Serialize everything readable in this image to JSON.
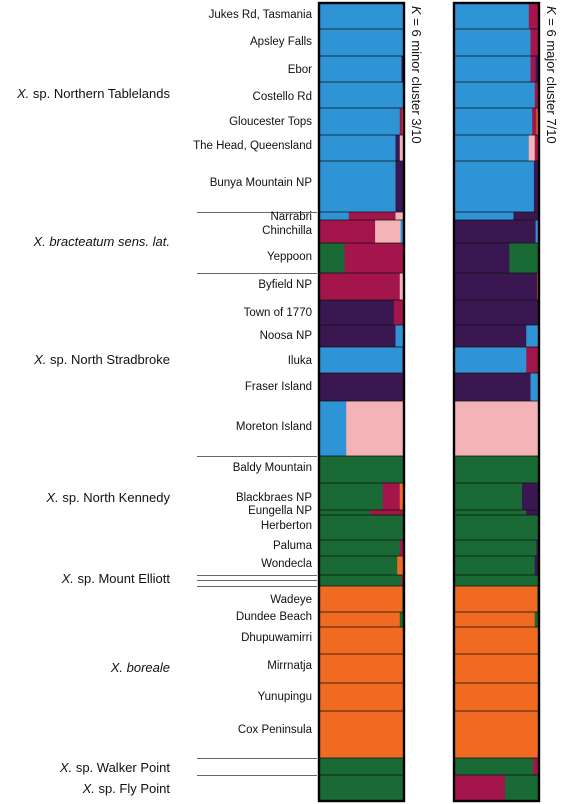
{
  "chart_data": {
    "type": "bar",
    "layout": "stacked-vertical-structure-plot",
    "colors": {
      "blue": "#2f94d6",
      "crimson": "#a4154b",
      "pink": "#f4b3b6",
      "darkpurple": "#3b1752",
      "green": "#1a6a36",
      "orange": "#f06a22"
    },
    "panels": [
      {
        "label_k": "K",
        "label_rest": " = 6 minor cluster 3/10"
      },
      {
        "label_k": "K",
        "label_rest": " = 6 major cluster 7/10"
      }
    ],
    "species": [
      {
        "prefix": "X.",
        "name": " sp. Northern Tablelands",
        "italic_all": false
      },
      {
        "prefix": "X.",
        "name": " bracteatum sens. lat.",
        "italic_all": true
      },
      {
        "prefix": "X.",
        "name": " sp. North Stradbroke",
        "italic_all": false
      },
      {
        "prefix": "X.",
        "name": " sp. North Kennedy",
        "italic_all": false
      },
      {
        "prefix": "X.",
        "name": " sp. Mount Elliott",
        "italic_all": false
      },
      {
        "prefix": "X.",
        "name": " boreale",
        "italic_all": true
      },
      {
        "prefix": "X.",
        "name": " sp. Walker Point",
        "italic_all": false
      },
      {
        "prefix": "X.",
        "name": " sp. Fly Point",
        "italic_all": false
      }
    ],
    "populations": [
      {
        "name": "Jukes Rd, Tasmania",
        "minor": {
          "blue": 1.0
        },
        "major": {
          "blue": 0.88,
          "crimson": 0.12
        }
      },
      {
        "name": "Apsley Falls",
        "minor": {
          "blue": 1.0
        },
        "major": {
          "blue": 0.9,
          "crimson": 0.1
        }
      },
      {
        "name": "Ebor",
        "minor": {
          "blue": 0.97,
          "darkpurple": 0.03
        },
        "major": {
          "blue": 0.9,
          "crimson": 0.06,
          "darkpurple": 0.04
        }
      },
      {
        "name": "Costello Rd",
        "minor": {
          "blue": 1.0
        },
        "major": {
          "blue": 0.95,
          "crimson": 0.05
        }
      },
      {
        "name": "Gloucester Tops",
        "minor": {
          "blue": 0.95,
          "crimson": 0.03,
          "orange": 0.02
        },
        "major": {
          "blue": 0.92,
          "crimson": 0.05,
          "orange": 0.03
        }
      },
      {
        "name": "The Head, Queensland",
        "minor": {
          "blue": 0.9,
          "darkpurple": 0.05,
          "pink": 0.05
        },
        "major": {
          "blue": 0.88,
          "pink": 0.07,
          "crimson": 0.05
        }
      },
      {
        "name": "Bunya Mountain NP",
        "minor": {
          "blue": 0.9,
          "darkpurple": 0.1
        },
        "major": {
          "blue": 0.94,
          "darkpurple": 0.06
        }
      },
      {
        "name": "Narrabri",
        "minor": {
          "blue": 0.35,
          "crimson": 0.55,
          "pink": 0.1
        },
        "major": {
          "blue": 0.7,
          "darkpurple": 0.3
        }
      },
      {
        "name": "Chinchilla",
        "minor": {
          "crimson": 0.66,
          "pink": 0.3,
          "blue": 0.04
        },
        "major": {
          "darkpurple": 0.96,
          "blue": 0.04
        }
      },
      {
        "name": "Yeppoon",
        "minor": {
          "green": 0.3,
          "crimson": 0.7
        },
        "major": {
          "darkpurple": 0.65,
          "green": 0.35
        }
      },
      {
        "name": "Byfield NP",
        "minor": {
          "crimson": 0.95,
          "pink": 0.05
        },
        "major": {
          "darkpurple": 0.98,
          "orange": 0.02
        }
      },
      {
        "name": "Town of 1770",
        "minor": {
          "darkpurple": 0.88,
          "crimson": 0.12
        },
        "major": {
          "darkpurple": 1.0
        }
      },
      {
        "name": "Noosa NP",
        "minor": {
          "darkpurple": 0.9,
          "blue": 0.1
        },
        "major": {
          "darkpurple": 0.85,
          "blue": 0.15
        }
      },
      {
        "name": "Iluka",
        "minor": {
          "blue": 0.98,
          "crimson": 0.02
        },
        "major": {
          "blue": 0.85,
          "crimson": 0.15
        }
      },
      {
        "name": "Fraser Island",
        "minor": {
          "darkpurple": 1.0
        },
        "major": {
          "darkpurple": 0.9,
          "blue": 0.1
        }
      },
      {
        "name": "Moreton Island",
        "minor": {
          "blue": 0.32,
          "pink": 0.68
        },
        "major": {
          "pink": 1.0
        }
      },
      {
        "name": "Baldy Mountain",
        "minor": {
          "green": 1.0
        },
        "major": {
          "green": 1.0
        }
      },
      {
        "name": "Blackbraes NP",
        "minor": {
          "green": 0.75,
          "crimson": 0.2,
          "orange": 0.05
        },
        "major": {
          "green": 0.8,
          "darkpurple": 0.2
        }
      },
      {
        "name": "Eungella NP",
        "minor": {
          "green": 0.6,
          "crimson": 0.4
        },
        "major": {
          "green": 0.85,
          "darkpurple": 0.15
        }
      },
      {
        "name": "Herberton",
        "minor": {
          "green": 1.0
        },
        "major": {
          "green": 1.0
        }
      },
      {
        "name": "Paluma",
        "minor": {
          "green": 0.95,
          "crimson": 0.05
        },
        "major": {
          "green": 0.97,
          "darkpurple": 0.03
        }
      },
      {
        "name": "Wondecla",
        "minor": {
          "green": 0.92,
          "orange": 0.08
        },
        "major": {
          "green": 0.95,
          "darkpurple": 0.05
        }
      },
      {
        "name": "",
        "minor": {
          "green": 0.97,
          "crimson": 0.03
        },
        "major": {
          "green": 1.0
        }
      },
      {
        "name": "Wadeye",
        "minor": {
          "orange": 0.98,
          "green": 0.02
        },
        "major": {
          "orange": 0.98,
          "green": 0.02
        }
      },
      {
        "name": "Dundee Beach",
        "minor": {
          "orange": 0.95,
          "green": 0.05
        },
        "major": {
          "orange": 0.95,
          "green": 0.05
        }
      },
      {
        "name": "Dhupuwamirri",
        "minor": {
          "orange": 1.0
        },
        "major": {
          "orange": 1.0
        }
      },
      {
        "name": "Mirrnatja",
        "minor": {
          "orange": 1.0
        },
        "major": {
          "orange": 1.0
        }
      },
      {
        "name": "Yunupingu",
        "minor": {
          "orange": 1.0
        },
        "major": {
          "orange": 1.0
        }
      },
      {
        "name": "Cox Peninsula",
        "minor": {
          "orange": 1.0
        },
        "major": {
          "orange": 0.99,
          "darkpurple": 0.01
        }
      },
      {
        "name": "",
        "minor": {
          "green": 1.0
        },
        "major": {
          "green": 0.93,
          "crimson": 0.07
        }
      },
      {
        "name": "",
        "minor": {
          "green": 1.0
        },
        "major": {
          "crimson": 0.6,
          "green": 0.4
        }
      }
    ]
  }
}
